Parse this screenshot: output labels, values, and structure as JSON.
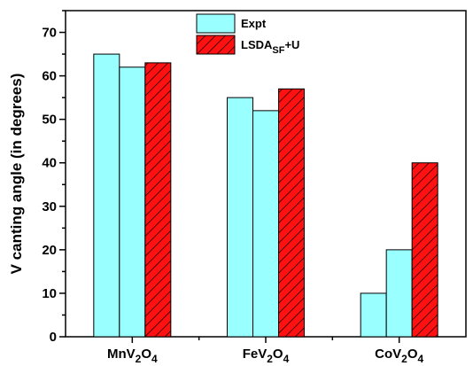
{
  "chart_data": {
    "type": "bar",
    "xlabel": "",
    "ylabel": "V canting angle (in degrees)",
    "ylim": [
      0,
      75
    ],
    "yticks": [
      0,
      10,
      20,
      30,
      40,
      50,
      60,
      70
    ],
    "grid": false,
    "legend_position": "top-center",
    "categories": [
      {
        "base": "MnV",
        "sub1": "2",
        "mid": "O",
        "sub2": "4"
      },
      {
        "base": "FeV",
        "sub1": "2",
        "mid": "O",
        "sub2": "4"
      },
      {
        "base": "CoV",
        "sub1": "2",
        "mid": "O",
        "sub2": "4"
      }
    ],
    "series": [
      {
        "name": "Expt",
        "values": [
          65,
          55,
          10
        ],
        "color": "#99ffff",
        "pattern": "solid"
      },
      {
        "name": "Expt",
        "values": [
          62,
          52,
          20
        ],
        "color": "#99ffff",
        "pattern": "solid"
      },
      {
        "name": "LSDA",
        "name_sub": "SF",
        "name_suffix": "+U",
        "values": [
          63,
          57,
          40
        ],
        "color": "#ff1111",
        "pattern": "hatch"
      }
    ],
    "legend": [
      {
        "label": "Expt",
        "label_sub": "",
        "label_suffix": "",
        "color": "#99ffff",
        "pattern": "solid"
      },
      {
        "label": "LSDA",
        "label_sub": "SF",
        "label_suffix": "+U",
        "color": "#ff1111",
        "pattern": "hatch"
      }
    ]
  }
}
